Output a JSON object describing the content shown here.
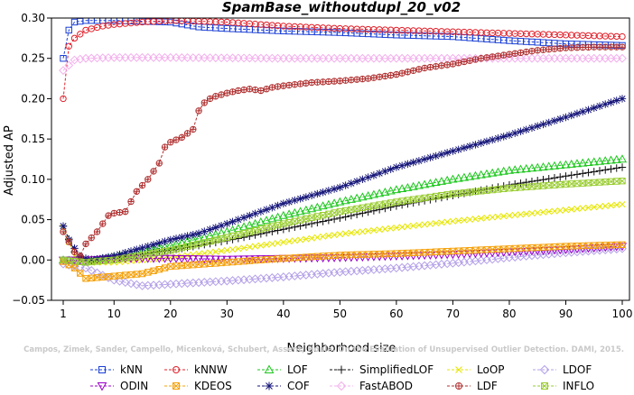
{
  "chart_data": {
    "type": "line",
    "title": "SpamBase_withoutdupl_20_v02",
    "xlabel": "Neighborhood size",
    "ylabel": "Adjusted AP",
    "xlim": [
      1,
      100
    ],
    "ylim": [
      -0.05,
      0.3
    ],
    "xticks": [
      1,
      10,
      20,
      30,
      40,
      50,
      60,
      70,
      80,
      90,
      100
    ],
    "yticks": [
      -0.05,
      0.0,
      0.05,
      0.1,
      0.15,
      0.2,
      0.25,
      0.3
    ],
    "ytick_labels": [
      "−0.05",
      "0.00",
      "0.05",
      "0.10",
      "0.15",
      "0.20",
      "0.25",
      "0.30"
    ],
    "watermark": "Campos, Zimek, Sander, Campello, Micenková, Schubert, Assent, Houle. On the Evaluation of Unsupervised Outlier Detection. DAMI, 2015.",
    "legend_position": "bottom",
    "series": [
      {
        "name": "kNN",
        "color": "#1a3fd6",
        "marker": "square",
        "points": [
          [
            1,
            0.25
          ],
          [
            2,
            0.285
          ],
          [
            3,
            0.295
          ],
          [
            5,
            0.297
          ],
          [
            10,
            0.297
          ],
          [
            15,
            0.296
          ],
          [
            20,
            0.295
          ],
          [
            25,
            0.289
          ],
          [
            30,
            0.287
          ],
          [
            40,
            0.284
          ],
          [
            50,
            0.282
          ],
          [
            60,
            0.279
          ],
          [
            70,
            0.277
          ],
          [
            80,
            0.272
          ],
          [
            90,
            0.268
          ],
          [
            100,
            0.266
          ]
        ]
      },
      {
        "name": "kNNW",
        "color": "#e0202a",
        "marker": "circle",
        "points": [
          [
            1,
            0.2
          ],
          [
            2,
            0.265
          ],
          [
            3,
            0.275
          ],
          [
            5,
            0.285
          ],
          [
            8,
            0.29
          ],
          [
            10,
            0.292
          ],
          [
            15,
            0.295
          ],
          [
            20,
            0.297
          ],
          [
            30,
            0.295
          ],
          [
            40,
            0.29
          ],
          [
            50,
            0.287
          ],
          [
            60,
            0.285
          ],
          [
            70,
            0.283
          ],
          [
            80,
            0.281
          ],
          [
            90,
            0.279
          ],
          [
            100,
            0.277
          ]
        ]
      },
      {
        "name": "LOF",
        "color": "#1fc71f",
        "marker": "triangle-up",
        "points": [
          [
            1,
            0.0
          ],
          [
            5,
            -0.002
          ],
          [
            10,
            0.004
          ],
          [
            15,
            0.01
          ],
          [
            20,
            0.018
          ],
          [
            30,
            0.035
          ],
          [
            40,
            0.055
          ],
          [
            50,
            0.072
          ],
          [
            60,
            0.087
          ],
          [
            70,
            0.1
          ],
          [
            80,
            0.111
          ],
          [
            90,
            0.118
          ],
          [
            100,
            0.125
          ]
        ]
      },
      {
        "name": "SimplifiedLOF",
        "color": "#111111",
        "marker": "plus",
        "points": [
          [
            1,
            0.042
          ],
          [
            3,
            0.01
          ],
          [
            5,
            0.0
          ],
          [
            10,
            0.003
          ],
          [
            20,
            0.012
          ],
          [
            30,
            0.024
          ],
          [
            40,
            0.038
          ],
          [
            50,
            0.052
          ],
          [
            60,
            0.067
          ],
          [
            70,
            0.08
          ],
          [
            80,
            0.093
          ],
          [
            90,
            0.104
          ],
          [
            100,
            0.115
          ]
        ]
      },
      {
        "name": "LoOP",
        "color": "#e6e600",
        "marker": "x",
        "points": [
          [
            1,
            0.04
          ],
          [
            3,
            0.005
          ],
          [
            5,
            -0.003
          ],
          [
            10,
            -0.003
          ],
          [
            20,
            0.003
          ],
          [
            30,
            0.012
          ],
          [
            40,
            0.022
          ],
          [
            50,
            0.032
          ],
          [
            60,
            0.04
          ],
          [
            70,
            0.048
          ],
          [
            80,
            0.055
          ],
          [
            90,
            0.062
          ],
          [
            100,
            0.069
          ]
        ]
      },
      {
        "name": "LDOF",
        "color": "#b4a0e8",
        "marker": "diamond",
        "points": [
          [
            1,
            -0.005
          ],
          [
            5,
            -0.01
          ],
          [
            10,
            -0.025
          ],
          [
            15,
            -0.032
          ],
          [
            20,
            -0.03
          ],
          [
            30,
            -0.026
          ],
          [
            40,
            -0.021
          ],
          [
            50,
            -0.015
          ],
          [
            60,
            -0.01
          ],
          [
            70,
            -0.004
          ],
          [
            80,
            0.003
          ],
          [
            90,
            0.009
          ],
          [
            100,
            0.014
          ]
        ]
      },
      {
        "name": "ODIN",
        "color": "#9a00c8",
        "marker": "triangle-down",
        "points": [
          [
            1,
            0.0
          ],
          [
            5,
            0.0
          ],
          [
            10,
            0.002
          ],
          [
            20,
            0.002
          ],
          [
            30,
            0.001
          ],
          [
            40,
            0.002
          ],
          [
            50,
            0.003
          ],
          [
            60,
            0.005
          ],
          [
            70,
            0.007
          ],
          [
            80,
            0.01
          ],
          [
            90,
            0.013
          ],
          [
            100,
            0.017
          ]
        ]
      },
      {
        "name": "KDEOS",
        "color": "#f5a10a",
        "marker": "square-x",
        "points": [
          [
            1,
            -0.002
          ],
          [
            3,
            -0.01
          ],
          [
            5,
            -0.023
          ],
          [
            10,
            -0.02
          ],
          [
            15,
            -0.017
          ],
          [
            20,
            -0.008
          ],
          [
            30,
            -0.003
          ],
          [
            40,
            0.002
          ],
          [
            50,
            0.006
          ],
          [
            60,
            0.008
          ],
          [
            70,
            0.011
          ],
          [
            80,
            0.014
          ],
          [
            90,
            0.017
          ],
          [
            100,
            0.019
          ]
        ]
      },
      {
        "name": "COF",
        "color": "#16167a",
        "marker": "asterisk",
        "points": [
          [
            1,
            0.042
          ],
          [
            2,
            0.025
          ],
          [
            4,
            0.004
          ],
          [
            6,
            0.0
          ],
          [
            10,
            0.005
          ],
          [
            15,
            0.015
          ],
          [
            20,
            0.025
          ],
          [
            25,
            0.033
          ],
          [
            30,
            0.045
          ],
          [
            40,
            0.07
          ],
          [
            50,
            0.09
          ],
          [
            60,
            0.115
          ],
          [
            70,
            0.135
          ],
          [
            80,
            0.155
          ],
          [
            90,
            0.177
          ],
          [
            100,
            0.2
          ]
        ]
      },
      {
        "name": "FastABOD",
        "color": "#f2b0ec",
        "marker": "diamond",
        "points": [
          [
            1,
            0.235
          ],
          [
            3,
            0.248
          ],
          [
            5,
            0.25
          ],
          [
            10,
            0.251
          ],
          [
            20,
            0.251
          ],
          [
            40,
            0.25
          ],
          [
            60,
            0.25
          ],
          [
            80,
            0.25
          ],
          [
            100,
            0.25
          ]
        ]
      },
      {
        "name": "LDF",
        "color": "#b03030",
        "marker": "circle-plus",
        "points": [
          [
            1,
            0.035
          ],
          [
            3,
            0.01
          ],
          [
            4,
            0.005
          ],
          [
            5,
            0.02
          ],
          [
            7,
            0.035
          ],
          [
            8,
            0.045
          ],
          [
            9,
            0.055
          ],
          [
            10,
            0.058
          ],
          [
            12,
            0.06
          ],
          [
            14,
            0.085
          ],
          [
            16,
            0.1
          ],
          [
            18,
            0.12
          ],
          [
            19,
            0.14
          ],
          [
            20,
            0.146
          ],
          [
            22,
            0.152
          ],
          [
            24,
            0.162
          ],
          [
            25,
            0.185
          ],
          [
            26,
            0.195
          ],
          [
            27,
            0.2
          ],
          [
            28,
            0.203
          ],
          [
            30,
            0.207
          ],
          [
            32,
            0.21
          ],
          [
            34,
            0.212
          ],
          [
            36,
            0.21
          ],
          [
            38,
            0.214
          ],
          [
            40,
            0.216
          ],
          [
            45,
            0.22
          ],
          [
            50,
            0.222
          ],
          [
            55,
            0.225
          ],
          [
            60,
            0.23
          ],
          [
            65,
            0.238
          ],
          [
            70,
            0.243
          ],
          [
            75,
            0.25
          ],
          [
            80,
            0.255
          ],
          [
            85,
            0.26
          ],
          [
            90,
            0.263
          ],
          [
            95,
            0.264
          ],
          [
            100,
            0.264
          ]
        ]
      },
      {
        "name": "INFLO",
        "color": "#9acd32",
        "marker": "square-x",
        "points": [
          [
            1,
            0.0
          ],
          [
            5,
            -0.003
          ],
          [
            10,
            0.0
          ],
          [
            15,
            0.006
          ],
          [
            20,
            0.012
          ],
          [
            30,
            0.028
          ],
          [
            40,
            0.045
          ],
          [
            50,
            0.06
          ],
          [
            60,
            0.072
          ],
          [
            70,
            0.082
          ],
          [
            80,
            0.089
          ],
          [
            90,
            0.094
          ],
          [
            100,
            0.098
          ]
        ]
      }
    ]
  }
}
